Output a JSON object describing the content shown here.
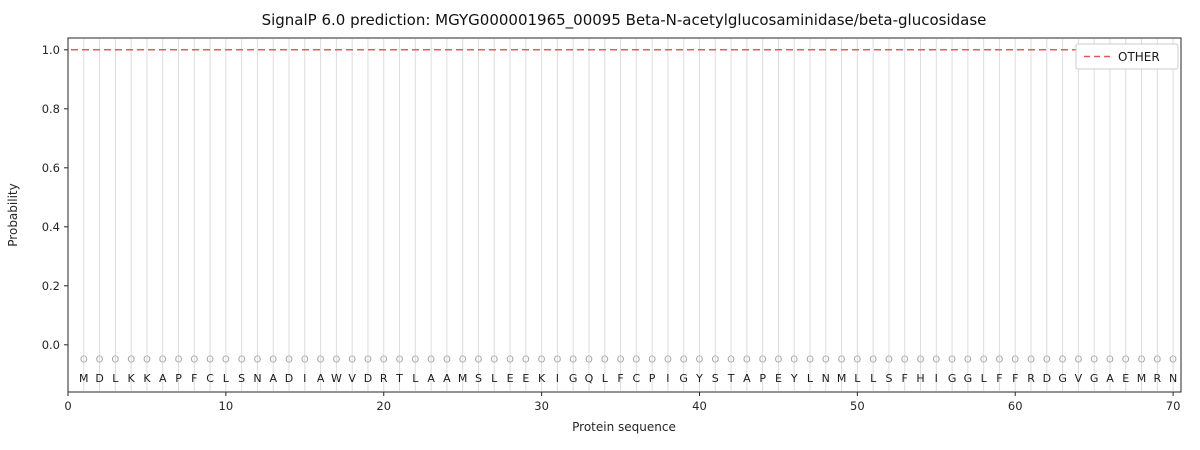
{
  "chart_data": {
    "type": "line",
    "title": "SignalP 6.0 prediction: MGYG000001965_00095 Beta-N-acetylglucosaminidase/beta-glucosidase",
    "xlabel": "Protein sequence",
    "ylabel": "Probability",
    "xlim": [
      0,
      70.5
    ],
    "ylim": [
      -0.16,
      1.04
    ],
    "xticks": [
      0,
      10,
      20,
      30,
      40,
      50,
      60,
      70
    ],
    "yticks": [
      0,
      0.2,
      0.4,
      0.6,
      0.8,
      1.0
    ],
    "grid": {
      "vertical_per_residue": true,
      "color": "#dcdcdc"
    },
    "sequence": "MDLKKAPFCLSNADIAWVDRTLAAMSLEEKIGQLFCPIGYSTAPEYLNMLLSFHIGGLFFRDGVGAEMRN",
    "residue_marker": {
      "char": "O",
      "y": -0.05,
      "color": "#a6a6a6"
    },
    "residue_letter_y": -0.112,
    "series": [
      {
        "name": "OTHER",
        "constant_value": 1.0,
        "color": "#e05c5c",
        "line_style": "dashed"
      }
    ],
    "legend": {
      "position": "upper right",
      "entries": [
        "OTHER"
      ],
      "border_color": "#cccccc"
    }
  }
}
